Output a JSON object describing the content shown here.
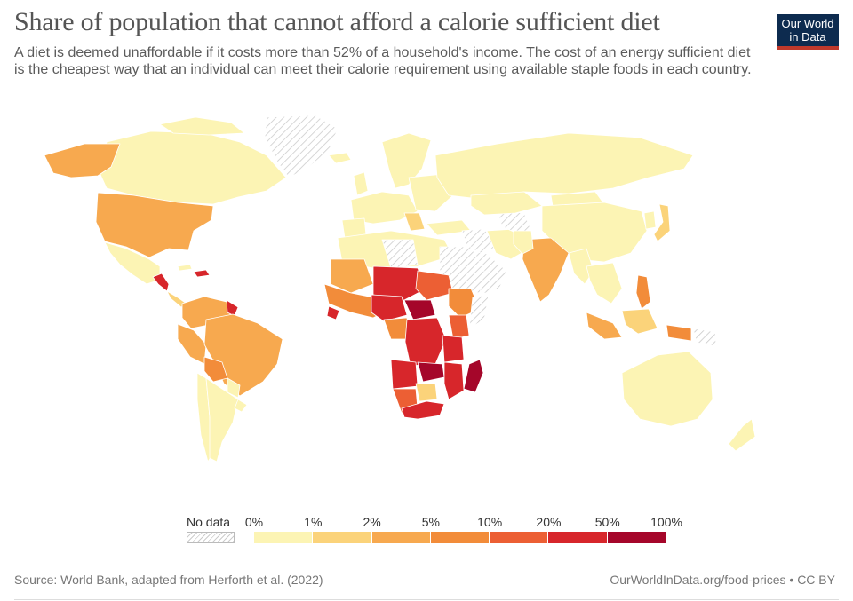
{
  "header": {
    "title": "Share of population that cannot afford a calorie sufficient diet",
    "subtitle": "A diet is deemed unaffordable if it costs more than 52% of a household's income. The cost of an energy sufficient diet is the cheapest way that an individual can meet their calorie requirement using available staple foods in each country.",
    "logo_line1": "Our World",
    "logo_line2": "in Data"
  },
  "legend": {
    "no_data_label": "No data",
    "bins": [
      {
        "from": "0%",
        "to": "1%",
        "color": "#fcf4b4"
      },
      {
        "from": "1%",
        "to": "2%",
        "color": "#fbd37a"
      },
      {
        "from": "2%",
        "to": "5%",
        "color": "#f7a94f"
      },
      {
        "from": "5%",
        "to": "10%",
        "color": "#f28c3a"
      },
      {
        "from": "10%",
        "to": "20%",
        "color": "#ec5f34"
      },
      {
        "from": "20%",
        "to": "50%",
        "color": "#d7262b"
      },
      {
        "from": "50%",
        "to": "100%",
        "color": "#a5062a"
      }
    ],
    "ticks": [
      "0%",
      "1%",
      "2%",
      "5%",
      "10%",
      "20%",
      "50%",
      "100%"
    ]
  },
  "footer": {
    "source": "Source: World Bank, adapted from Herforth et al. (2022)",
    "credit": "OurWorldInData.org/food-prices • CC BY"
  },
  "colors": {
    "nodata": "#e8e8e8",
    "border": "#ffffff",
    "lowest": "#fcf4b4",
    "low": "#fbd37a",
    "mid": "#f7a94f",
    "midhigh": "#f28c3a",
    "high": "#ec5f34",
    "veryhigh": "#d7262b",
    "extreme": "#a5062a"
  }
}
